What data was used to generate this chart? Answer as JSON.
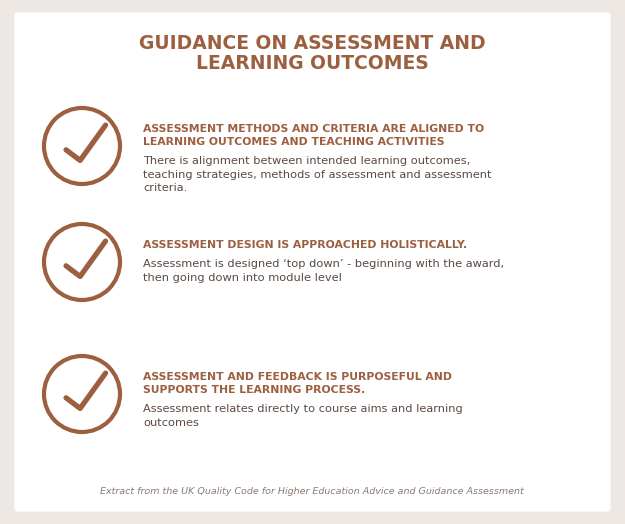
{
  "title_line1": "GUIDANCE ON ASSESSMENT AND",
  "title_line2": "LEARNING OUTCOMES",
  "title_color": "#9c6040",
  "background_color": "#ede8e3",
  "card_color": "#ffffff",
  "accent_color": "#9c6040",
  "body_text_color": "#5a4a42",
  "footer_color": "#8a7a72",
  "items": [
    {
      "title_line1": "ASSESSMENT METHODS AND CRITERIA ARE ALIGNED TO",
      "title_line2": "LEARNING OUTCOMES AND TEACHING ACTIVITIES",
      "body": "There is alignment between intended learning outcomes,\nteaching strategies, methods of assessment and assessment\ncriteria."
    },
    {
      "title_line1": "ASSESSMENT DESIGN IS APPROACHED HOLISTICALLY.",
      "title_line2": "",
      "body": "Assessment is designed ‘top down’ - beginning with the award,\nthen going down into module level"
    },
    {
      "title_line1": "ASSESSMENT AND FEEDBACK IS PURPOSEFUL AND",
      "title_line2": "SUPPORTS THE LEARNING PROCESS.",
      "body": "Assessment relates directly to course aims and learning\noutcomes"
    }
  ],
  "footer": "Extract from the UK Quality Code for Higher Education Advice and Guidance Assessment",
  "title_fontsize": 13.5,
  "item_title_fontsize": 7.8,
  "item_body_fontsize": 8.2,
  "footer_fontsize": 6.8
}
